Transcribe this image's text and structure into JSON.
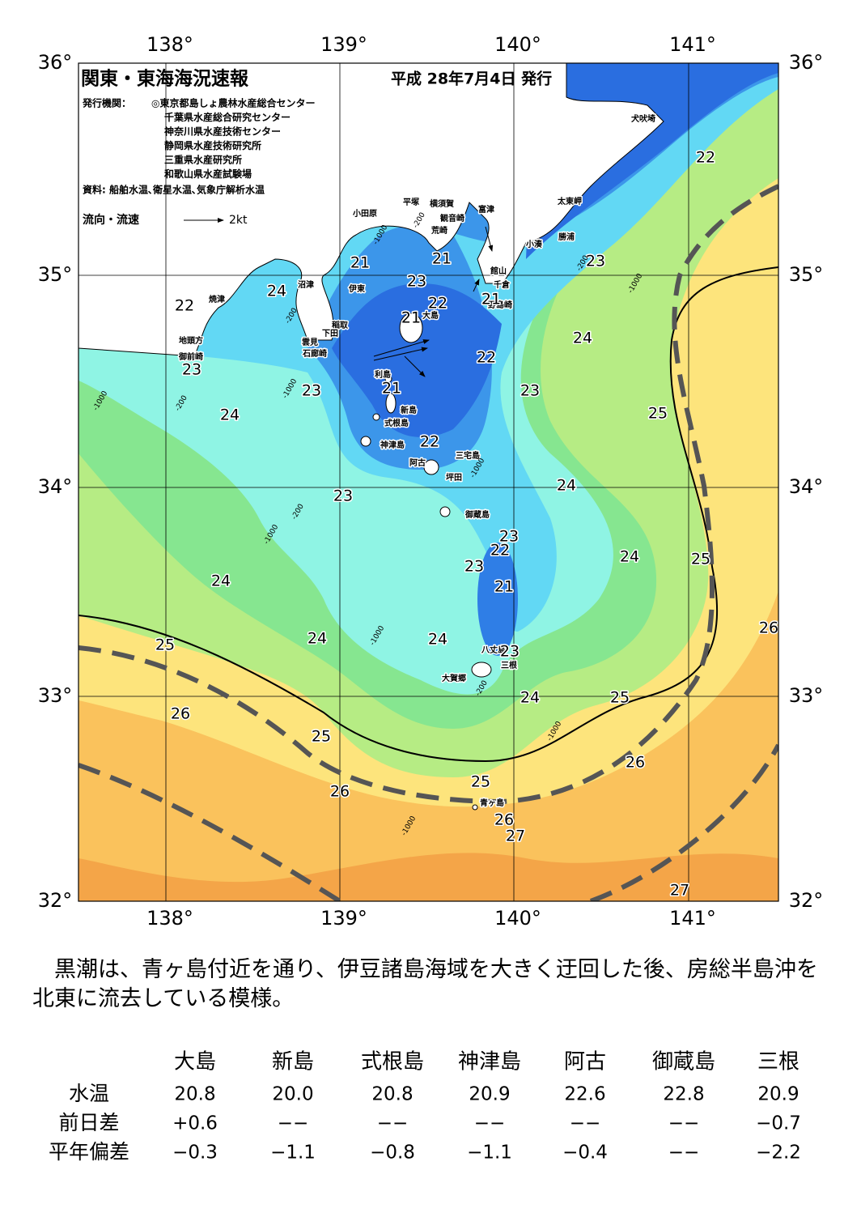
{
  "header": {
    "title": "関東・東海海況速報",
    "date": "平成 28年7月4日 発行"
  },
  "publishers": {
    "label": "発行機関：",
    "items": [
      "◎東京都島しょ農林水産総合センター",
      "千葉県水産総合研究センター",
      "神奈川県水産技術センター",
      "静岡県水産技術研究所",
      "三重県水産研究所",
      "和歌山県水産試験場"
    ]
  },
  "source": "資料: 船舶水温､衛星水温､気象庁解析水温",
  "legend": {
    "label": "流向・流速",
    "scale": "2kt"
  },
  "map": {
    "longitude_labels": [
      "138°",
      "139°",
      "140°",
      "141°"
    ],
    "latitude_labels": [
      "36°",
      "35°",
      "34°",
      "33°",
      "32°"
    ],
    "places": [
      "犬吠埼",
      "太東岬",
      "勝浦",
      "小湊",
      "富津",
      "横須賀",
      "観音崎",
      "平塚",
      "小田原",
      "荒崎",
      "館山",
      "千倉",
      "野島崎",
      "大島",
      "伊東",
      "沼津",
      "焼津",
      "稲取",
      "下田",
      "雲見",
      "石廊崎",
      "地頭方",
      "御前崎",
      "利島",
      "新島",
      "式根島",
      "神津島",
      "三宅島",
      "阿古",
      "坪田",
      "御蔵島",
      "八丈島",
      "三根",
      "大賀郷",
      "青ヶ島"
    ],
    "isotherm_labels": [
      22,
      23,
      21,
      24,
      23,
      21,
      22,
      22,
      21,
      21,
      24,
      22,
      23,
      23,
      21,
      23,
      24,
      25,
      22,
      24,
      23,
      23,
      22,
      24,
      25,
      23,
      24,
      21,
      26,
      24,
      24,
      25,
      23,
      24,
      25,
      26,
      25,
      26,
      25,
      26,
      26,
      27,
      27
    ],
    "depth_labels": [
      -1000,
      -200,
      -1000,
      -200,
      -1000,
      -200,
      -200,
      -1000,
      -1000,
      -1000,
      -1000,
      -1000,
      -200,
      -1000,
      -200
    ]
  },
  "summary": "黒潮は、青ヶ島付近を通り、伊豆諸島海域を大きく迂回した後、房総半島沖を北東に流去している模様。",
  "table": {
    "columns": [
      "大島",
      "新島",
      "式根島",
      "神津島",
      "阿古",
      "御蔵島",
      "三根"
    ],
    "rows": [
      {
        "label": "水温",
        "values": [
          "20.8",
          "20.0",
          "20.8",
          "20.9",
          "22.6",
          "22.8",
          "20.9"
        ]
      },
      {
        "label": "前日差",
        "values": [
          "+0.6",
          "−−",
          "−−",
          "−−",
          "−−",
          "−−",
          "−0.7"
        ]
      },
      {
        "label": "平年偏差",
        "values": [
          "−0.3",
          "−1.1",
          "−0.8",
          "−1.1",
          "−0.4",
          "−−",
          "−2.2"
        ]
      }
    ]
  }
}
